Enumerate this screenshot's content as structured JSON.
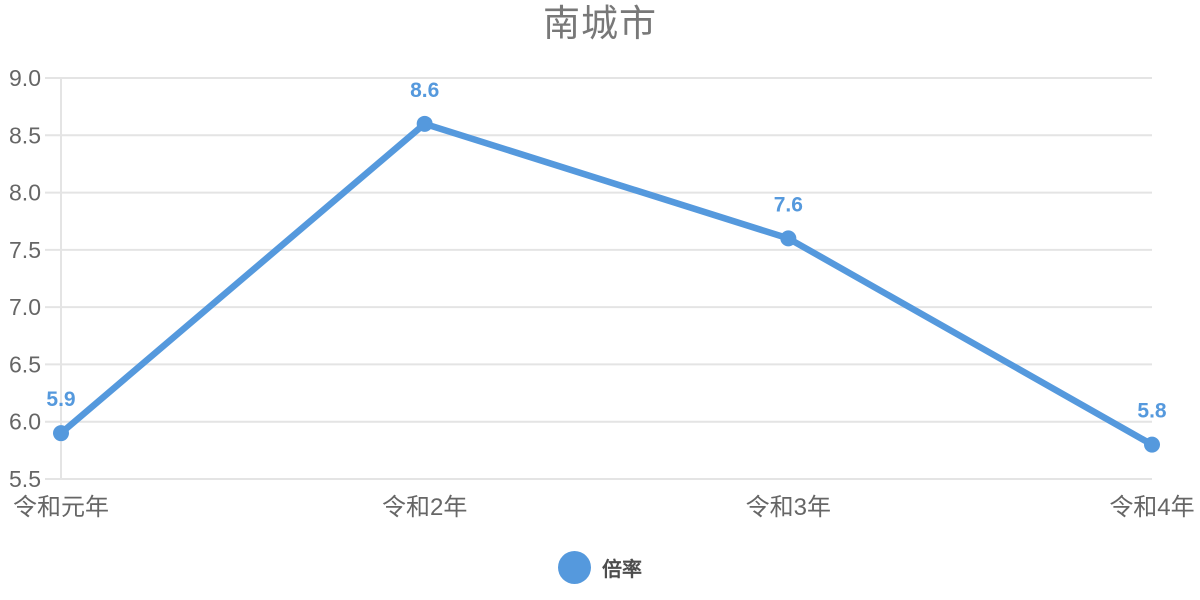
{
  "chart_data": {
    "type": "line",
    "title": "南城市",
    "categories": [
      "令和元年",
      "令和2年",
      "令和3年",
      "令和4年"
    ],
    "series": [
      {
        "name": "倍率",
        "values": [
          5.9,
          8.6,
          7.6,
          5.8
        ]
      }
    ],
    "data_labels": [
      "5.9",
      "8.6",
      "7.6",
      "5.8"
    ],
    "ylim": [
      5.5,
      9.0
    ],
    "ytick_labels": [
      "9.0",
      "8.5",
      "8.0",
      "7.5",
      "7.0",
      "6.5",
      "6.0",
      "5.5"
    ],
    "xlabel": "",
    "ylabel": "",
    "grid": "horizontal-only",
    "legend_position": "bottom",
    "colors": {
      "series": "#5599dd",
      "title": "#787878",
      "axis_label": "#666666",
      "gridline": "#e4e4e4",
      "legend_text": "#4d4d4d"
    }
  }
}
